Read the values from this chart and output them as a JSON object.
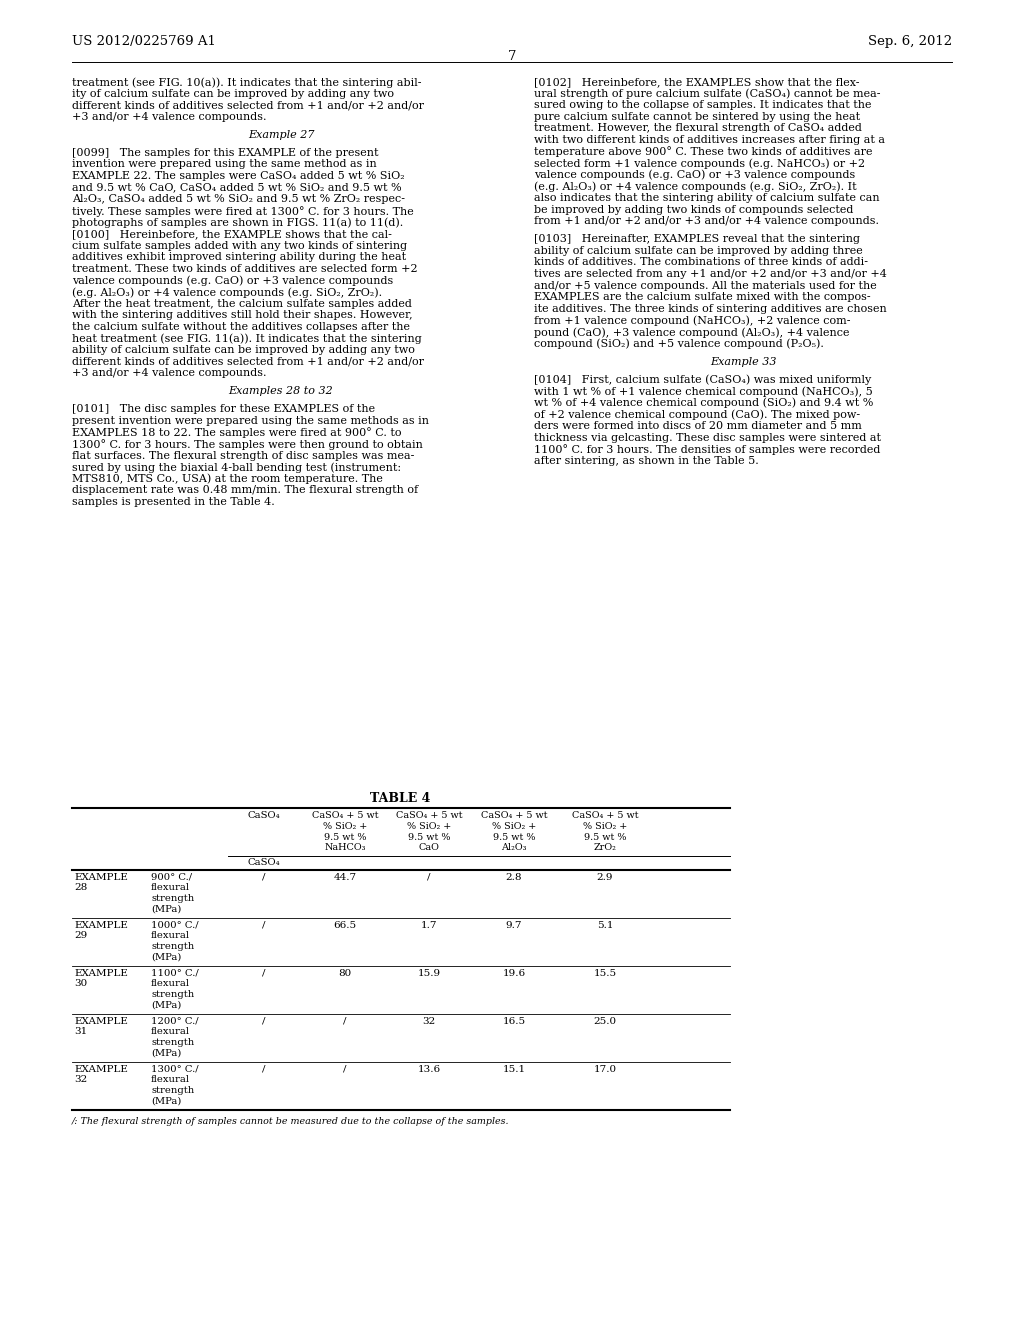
{
  "header_left": "US 2012/0225769 A1",
  "header_right": "Sep. 6, 2012",
  "page_number": "7",
  "background_color": "#ffffff",
  "text_color": "#000000",
  "left_column": [
    "treatment (see FIG. 10(a)). It indicates that the sintering abil-",
    "ity of calcium sulfate can be improved by adding any two",
    "different kinds of additives selected from +1 and/or +2 and/or",
    "+3 and/or +4 valence compounds.",
    "",
    "Example 27",
    "",
    "[0099]   The samples for this EXAMPLE of the present",
    "invention were prepared using the same method as in",
    "EXAMPLE 22. The samples were CaSO₄ added 5 wt % SiO₂",
    "and 9.5 wt % CaO, CaSO₄ added 5 wt % SiO₂ and 9.5 wt %",
    "Al₂O₃, CaSO₄ added 5 wt % SiO₂ and 9.5 wt % ZrO₂ respec-",
    "tively. These samples were fired at 1300° C. for 3 hours. The",
    "photographs of samples are shown in FIGS. 11(a) to 11(d).",
    "[0100]   Hereinbefore, the EXAMPLE shows that the cal-",
    "cium sulfate samples added with any two kinds of sintering",
    "additives exhibit improved sintering ability during the heat",
    "treatment. These two kinds of additives are selected form +2",
    "valence compounds (e.g. CaO) or +3 valence compounds",
    "(e.g. Al₂O₃) or +4 valence compounds (e.g. SiO₂, ZrO₂).",
    "After the heat treatment, the calcium sulfate samples added",
    "with the sintering additives still hold their shapes. However,",
    "the calcium sulfate without the additives collapses after the",
    "heat treatment (see FIG. 11(a)). It indicates that the sintering",
    "ability of calcium sulfate can be improved by adding any two",
    "different kinds of additives selected from +1 and/or +2 and/or",
    "+3 and/or +4 valence compounds.",
    "",
    "Examples 28 to 32",
    "",
    "[0101]   The disc samples for these EXAMPLES of the",
    "present invention were prepared using the same methods as in",
    "EXAMPLES 18 to 22. The samples were fired at 900° C. to",
    "1300° C. for 3 hours. The samples were then ground to obtain",
    "flat surfaces. The flexural strength of disc samples was mea-",
    "sured by using the biaxial 4-ball bending test (instrument:",
    "MTS810, MTS Co., USA) at the room temperature. The",
    "displacement rate was 0.48 mm/min. The flexural strength of",
    "samples is presented in the Table 4."
  ],
  "right_column": [
    "[0102]   Hereinbefore, the EXAMPLES show that the flex-",
    "ural strength of pure calcium sulfate (CaSO₄) cannot be mea-",
    "sured owing to the collapse of samples. It indicates that the",
    "pure calcium sulfate cannot be sintered by using the heat",
    "treatment. However, the flexural strength of CaSO₄ added",
    "with two different kinds of additives increases after firing at a",
    "temperature above 900° C. These two kinds of additives are",
    "selected form +1 valence compounds (e.g. NaHCO₃) or +2",
    "valence compounds (e.g. CaO) or +3 valence compounds",
    "(e.g. Al₂O₃) or +4 valence compounds (e.g. SiO₂, ZrO₂). It",
    "also indicates that the sintering ability of calcium sulfate can",
    "be improved by adding two kinds of compounds selected",
    "from +1 and/or +2 and/or +3 and/or +4 valence compounds.",
    "",
    "[0103]   Hereinafter, EXAMPLES reveal that the sintering",
    "ability of calcium sulfate can be improved by adding three",
    "kinds of additives. The combinations of three kinds of addi-",
    "tives are selected from any +1 and/or +2 and/or +3 and/or +4",
    "and/or +5 valence compounds. All the materials used for the",
    "EXAMPLES are the calcium sulfate mixed with the compos-",
    "ite additives. The three kinds of sintering additives are chosen",
    "from +1 valence compound (NaHCO₃), +2 valence com-",
    "pound (CaO), +3 valence compound (Al₂O₃), +4 valence",
    "compound (SiO₂) and +5 valence compound (P₂O₅).",
    "",
    "Example 33",
    "",
    "[0104]   First, calcium sulfate (CaSO₄) was mixed uniformly",
    "with 1 wt % of +1 valence chemical compound (NaHCO₃), 5",
    "wt % of +4 valence chemical compound (SiO₂) and 9.4 wt %",
    "of +2 valence chemical compound (CaO). The mixed pow-",
    "ders were formed into discs of 20 mm diameter and 5 mm",
    "thickness via gelcasting. These disc samples were sintered at",
    "1100° C. for 3 hours. The densities of samples were recorded",
    "after sintering, as shown in the Table 5."
  ],
  "table4_title": "TABLE 4",
  "table4_rows": [
    [
      "EXAMPLE",
      "28",
      "900° C./",
      "/",
      "44.7",
      "/",
      "2.8",
      "2.9"
    ],
    [
      "EXAMPLE",
      "29",
      "1000° C./",
      "/",
      "66.5",
      "1.7",
      "9.7",
      "5.1"
    ],
    [
      "EXAMPLE",
      "30",
      "1100° C./",
      "/",
      "80",
      "15.9",
      "19.6",
      "15.5"
    ],
    [
      "EXAMPLE",
      "31",
      "1200° C./",
      "/",
      "/",
      "32",
      "16.5",
      "25.0"
    ],
    [
      "EXAMPLE",
      "32",
      "1300° C./",
      "/",
      "/",
      "13.6",
      "15.1",
      "17.0"
    ]
  ],
  "table4_footnote": "/: The flexural strength of samples cannot be measured due to the collapse of the samples."
}
